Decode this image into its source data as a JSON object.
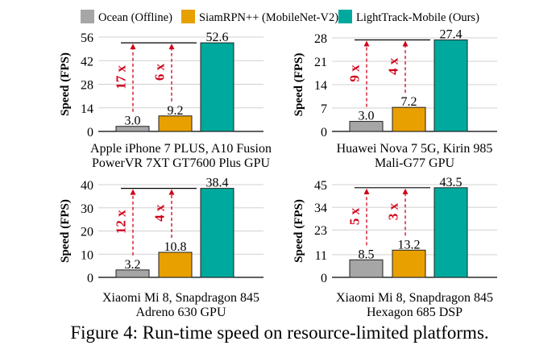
{
  "legend": [
    {
      "name": "Ocean (Offline)",
      "color": "#a6a6a6"
    },
    {
      "name": "SiamRPN++ (MobileNet-V2)",
      "color": "#e8a000"
    },
    {
      "name": "LightTrack-Mobile (Ours)",
      "color": "#00a99d"
    }
  ],
  "caption": "Figure 4: Run-time speed on resource-limited platforms.",
  "accent_color": "#d0021b",
  "chart_data": [
    {
      "type": "bar",
      "ylabel": "Speed (FPS)",
      "ylim": [
        0,
        56
      ],
      "yticks": [
        0,
        14,
        28,
        42,
        56
      ],
      "grid": true,
      "xlabel": [
        "Apple iPhone 7 PLUS, A10 Fusion",
        "PowerVR 7XT GT7600 Plus GPU"
      ],
      "series": [
        {
          "name": "Ocean (Offline)",
          "value": 3.0,
          "label": "3.0"
        },
        {
          "name": "SiamRPN++ (MobileNet-V2)",
          "value": 9.2,
          "label": "9.2"
        },
        {
          "name": "LightTrack-Mobile (Ours)",
          "value": 52.6,
          "label": "52.6"
        }
      ],
      "speedups": [
        "17 x",
        "6 x"
      ]
    },
    {
      "type": "bar",
      "ylabel": "Speed (FPS)",
      "ylim": [
        0,
        28
      ],
      "yticks": [
        0,
        7,
        14,
        21,
        28
      ],
      "grid": true,
      "xlabel": [
        "Huawei Nova 7 5G, Kirin 985",
        "Mali-G77 GPU"
      ],
      "series": [
        {
          "name": "Ocean (Offline)",
          "value": 3.0,
          "label": "3.0"
        },
        {
          "name": "SiamRPN++ (MobileNet-V2)",
          "value": 7.2,
          "label": "7.2"
        },
        {
          "name": "LightTrack-Mobile (Ours)",
          "value": 27.4,
          "label": "27.4"
        }
      ],
      "speedups": [
        "9 x",
        "4 x"
      ]
    },
    {
      "type": "bar",
      "ylabel": "Speed (FPS)",
      "ylim": [
        0,
        40
      ],
      "yticks": [
        0,
        10,
        20,
        30,
        40
      ],
      "grid": true,
      "xlabel": [
        "Xiaomi Mi 8, Snapdragon 845",
        "Adreno 630 GPU"
      ],
      "series": [
        {
          "name": "Ocean (Offline)",
          "value": 3.2,
          "label": "3.2"
        },
        {
          "name": "SiamRPN++ (MobileNet-V2)",
          "value": 10.8,
          "label": "10.8"
        },
        {
          "name": "LightTrack-Mobile (Ours)",
          "value": 38.4,
          "label": "38.4"
        }
      ],
      "speedups": [
        "12 x",
        "4 x"
      ]
    },
    {
      "type": "bar",
      "ylabel": "Speed (FPS)",
      "ylim": [
        0,
        45
      ],
      "yticks": [
        0,
        11,
        23,
        34,
        45
      ],
      "grid": true,
      "xlabel": [
        "Xiaomi Mi 8, Snapdragon 845",
        "Hexagon 685 DSP"
      ],
      "series": [
        {
          "name": "Ocean (Offline)",
          "value": 8.5,
          "label": "8.5"
        },
        {
          "name": "SiamRPN++ (MobileNet-V2)",
          "value": 13.2,
          "label": "13.2"
        },
        {
          "name": "LightTrack-Mobile (Ours)",
          "value": 43.5,
          "label": "43.5"
        }
      ],
      "speedups": [
        "5 x",
        "3 x"
      ]
    }
  ]
}
